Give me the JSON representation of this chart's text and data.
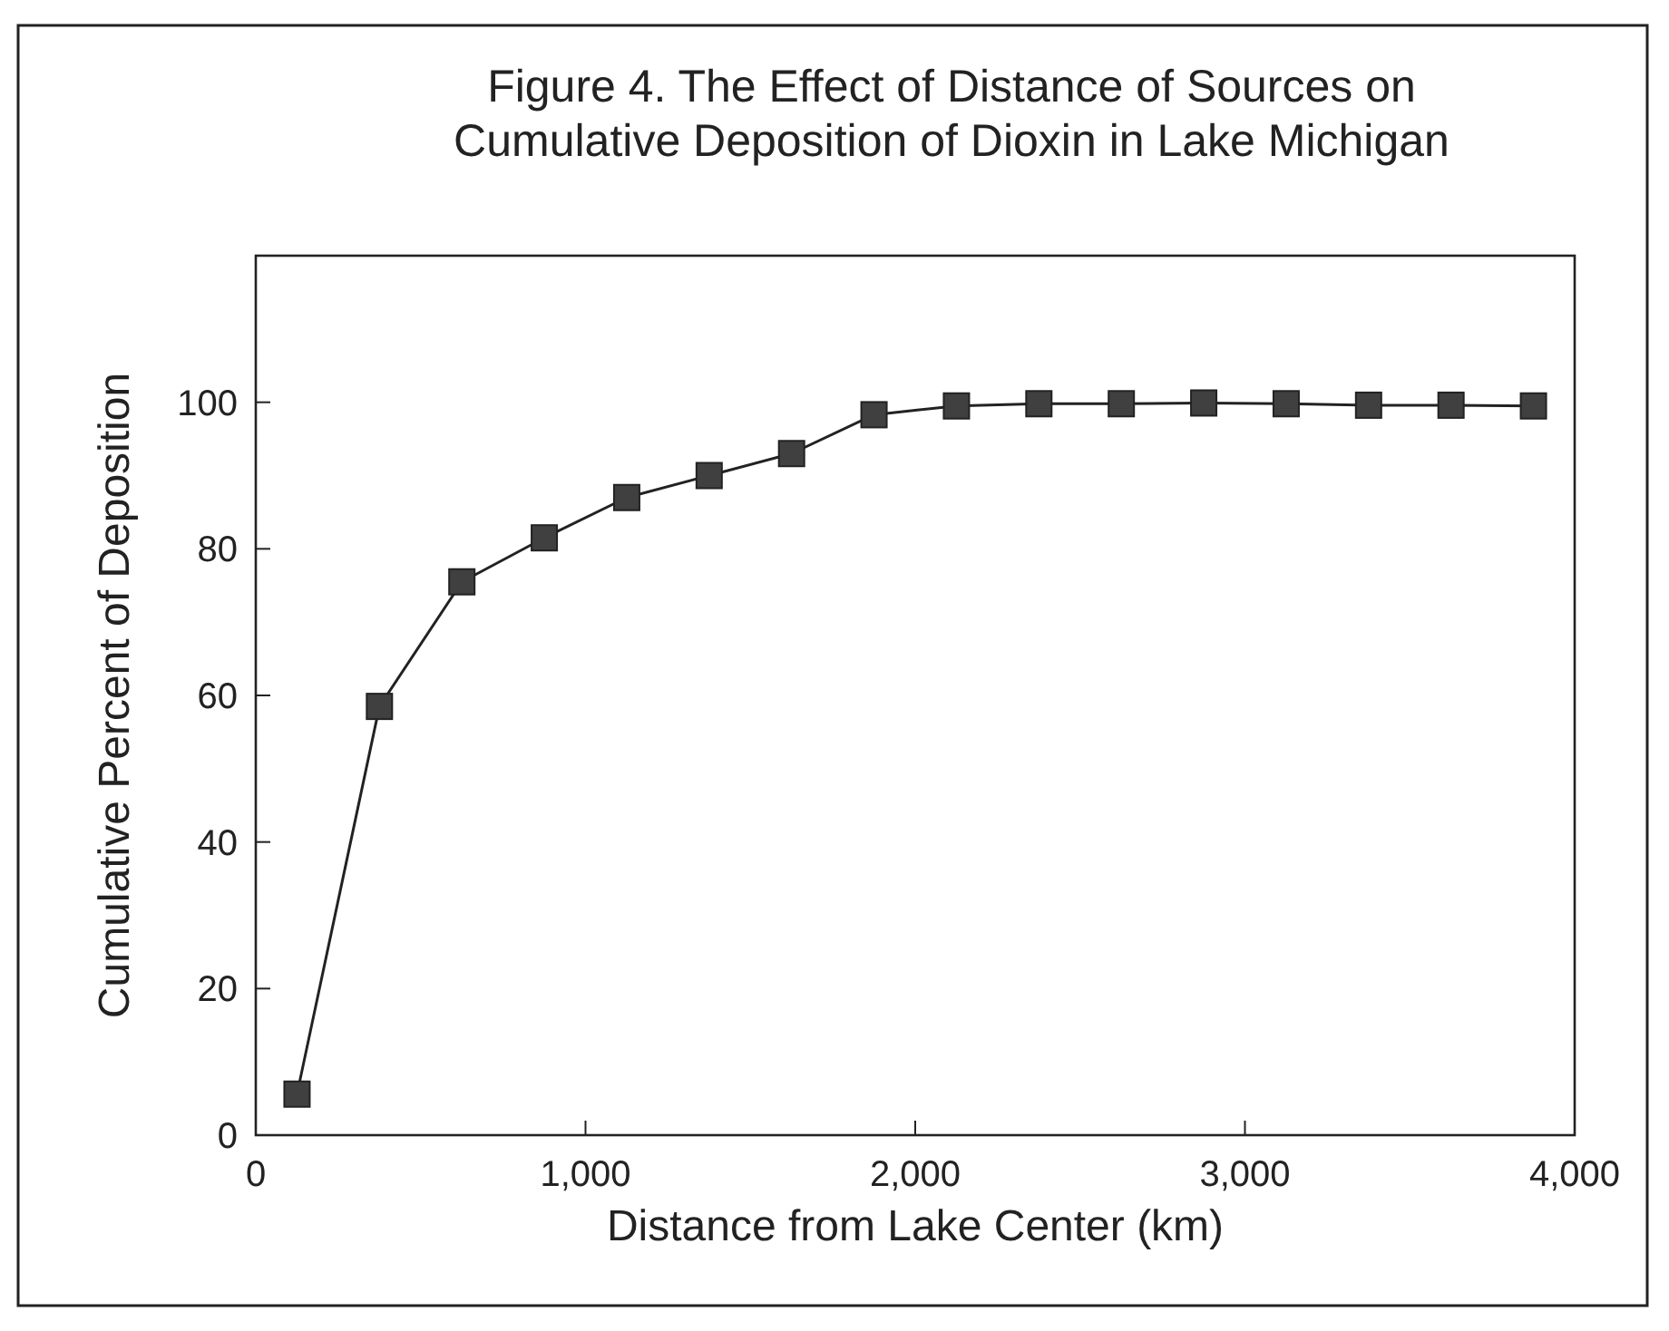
{
  "chart_data": {
    "type": "line",
    "title": "Figure 4. The Effect of Distance of Sources on\nCumulative Deposition of Dioxin in Lake Michigan",
    "xlabel": "Distance from Lake Center (km)",
    "ylabel": "Cumulative Percent of Deposition",
    "x": [
      125,
      375,
      625,
      875,
      1125,
      1375,
      1625,
      1875,
      2125,
      2375,
      2625,
      2875,
      3125,
      3375,
      3625,
      3875
    ],
    "series": [
      {
        "color": "#404040",
        "values": [
          5.6,
          58.5,
          75.5,
          81.5,
          87,
          90,
          93,
          98.3,
          99.5,
          99.8,
          99.8,
          99.9,
          99.8,
          99.6,
          99.6,
          99.5
        ]
      }
    ],
    "xlim": [
      0,
      4000
    ],
    "xticks": [
      0,
      {
        "value": 1000,
        "label": "1,000"
      },
      {
        "value": 2000,
        "label": "2,000"
      },
      {
        "value": 3000,
        "label": "3,000"
      },
      {
        "value": 4000,
        "label": "4,000"
      }
    ],
    "ylim": [
      0,
      120
    ],
    "yticks": [
      0,
      20,
      40,
      60,
      80,
      100
    ],
    "marker": "square",
    "line_style": "solid"
  }
}
